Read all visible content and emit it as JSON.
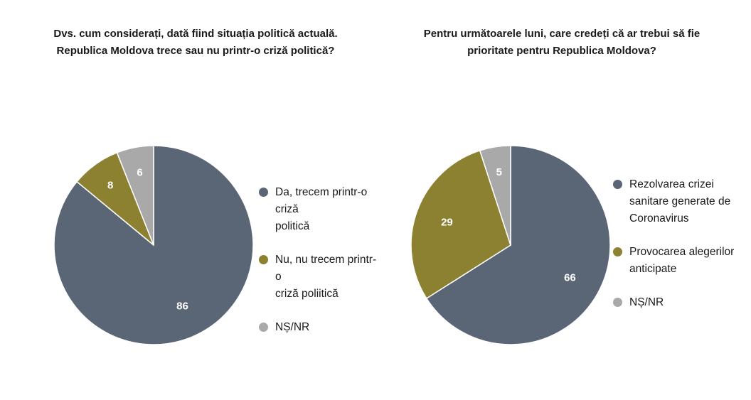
{
  "chart_data": [
    {
      "type": "pie",
      "title": "Dvs. cum considerați, dată fiind situația politică actuală.\nRepublica Moldova trece sau nu printr-o criză politică?",
      "slices": [
        {
          "label": "Da, trecem printr-o criză\npolitică",
          "value": 86,
          "color": "#5a6576"
        },
        {
          "label": "Nu, nu trecem printr-o\ncriză poliitică",
          "value": 8,
          "color": "#8c8130"
        },
        {
          "label": "NȘ/NR",
          "value": 6,
          "color": "#a9a9a9"
        }
      ],
      "legend_position": "right"
    },
    {
      "type": "pie",
      "title": "Pentru următoarele luni, care credeți că ar trebui să fie\nprioritate pentru Republica Moldova?",
      "slices": [
        {
          "label": "Rezolvarea crizei\nsanitare generate de\nCoronavirus",
          "value": 66,
          "color": "#5a6576"
        },
        {
          "label": "Provocarea alegerilor\nanticipate",
          "value": 29,
          "color": "#8c8130"
        },
        {
          "label": "NȘ/NR",
          "value": 5,
          "color": "#a9a9a9"
        }
      ],
      "legend_position": "right"
    }
  ]
}
